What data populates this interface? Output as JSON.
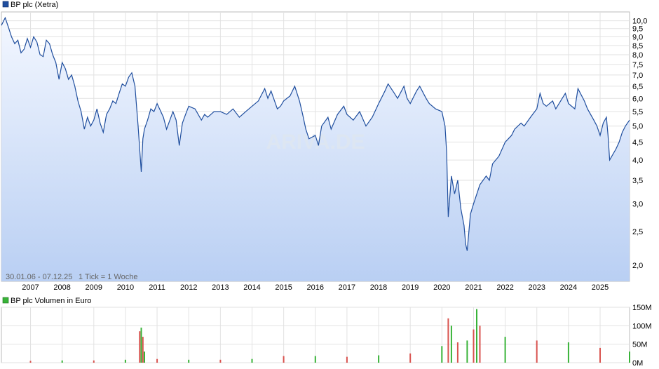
{
  "chart_data": [
    {
      "type": "line",
      "title": "BP plc (Xetra)",
      "legend": "top-left",
      "color": "#1f4e9e",
      "fill_gradient": [
        "#f3f7ff",
        "#b9cff3"
      ],
      "y_scale": "log",
      "ylim": [
        1.8,
        10.6
      ],
      "y_ticks": [
        "10,0",
        "9,5",
        "9,0",
        "8,5",
        "8,0",
        "7,5",
        "7,0",
        "6,5",
        "6,0",
        "5,5",
        "5,0",
        "4,5",
        "4,0",
        "3,5",
        "3,0",
        "2,5",
        "2,0"
      ],
      "x_ticks": [
        "2007",
        "2008",
        "2009",
        "2010",
        "2011",
        "2012",
        "2013",
        "2014",
        "2015",
        "2016",
        "2017",
        "2018",
        "2019",
        "2020",
        "2021",
        "2022",
        "2023",
        "2024",
        "2025"
      ],
      "grid": true,
      "watermark": "ARIVA.DE",
      "date_range_note": "30.01.06 - 07.12.25",
      "tick_note": "1 Tick = 1 Woche",
      "series": [
        {
          "name": "BP plc (Xetra)",
          "x": [
            2006.08,
            2006.2,
            2006.3,
            2006.4,
            2006.5,
            2006.6,
            2006.7,
            2006.8,
            2006.9,
            2007.0,
            2007.1,
            2007.2,
            2007.3,
            2007.4,
            2007.5,
            2007.6,
            2007.7,
            2007.8,
            2007.9,
            2008.0,
            2008.1,
            2008.2,
            2008.3,
            2008.4,
            2008.5,
            2008.6,
            2008.7,
            2008.8,
            2008.9,
            2009.0,
            2009.1,
            2009.2,
            2009.3,
            2009.4,
            2009.5,
            2009.6,
            2009.7,
            2009.8,
            2009.9,
            2010.0,
            2010.1,
            2010.2,
            2010.3,
            2010.4,
            2010.5,
            2010.55,
            2010.6,
            2010.7,
            2010.8,
            2010.9,
            2011.0,
            2011.2,
            2011.3,
            2011.5,
            2011.6,
            2011.7,
            2011.8,
            2011.9,
            2012.0,
            2012.2,
            2012.4,
            2012.5,
            2012.6,
            2012.8,
            2013.0,
            2013.2,
            2013.4,
            2013.6,
            2013.8,
            2014.0,
            2014.2,
            2014.4,
            2014.5,
            2014.6,
            2014.8,
            2014.9,
            2015.0,
            2015.2,
            2015.35,
            2015.5,
            2015.6,
            2015.7,
            2015.8,
            2016.0,
            2016.1,
            2016.2,
            2016.4,
            2016.5,
            2016.7,
            2016.9,
            2017.0,
            2017.2,
            2017.4,
            2017.6,
            2017.8,
            2018.0,
            2018.2,
            2018.3,
            2018.5,
            2018.6,
            2018.8,
            2018.9,
            2019.0,
            2019.2,
            2019.3,
            2019.5,
            2019.6,
            2019.8,
            2020.0,
            2020.1,
            2020.15,
            2020.2,
            2020.3,
            2020.4,
            2020.5,
            2020.6,
            2020.7,
            2020.75,
            2020.8,
            2020.9,
            2021.0,
            2021.2,
            2021.4,
            2021.5,
            2021.6,
            2021.8,
            2022.0,
            2022.2,
            2022.3,
            2022.5,
            2022.6,
            2022.8,
            2023.0,
            2023.1,
            2023.2,
            2023.3,
            2023.5,
            2023.6,
            2023.8,
            2023.9,
            2024.0,
            2024.2,
            2024.3,
            2024.5,
            2024.6,
            2024.8,
            2024.9,
            2025.0,
            2025.1,
            2025.2,
            2025.25,
            2025.3,
            2025.5,
            2025.6,
            2025.7,
            2025.8,
            2025.93
          ],
          "y": [
            9.7,
            10.2,
            9.6,
            9.0,
            8.6,
            8.8,
            8.1,
            8.3,
            8.9,
            8.4,
            9.0,
            8.7,
            8.0,
            7.9,
            8.8,
            8.6,
            8.0,
            7.6,
            6.8,
            7.6,
            7.3,
            6.8,
            7.0,
            6.5,
            5.9,
            5.5,
            4.9,
            5.3,
            5.0,
            5.2,
            5.6,
            5.1,
            4.8,
            5.4,
            5.6,
            5.9,
            5.8,
            6.2,
            6.6,
            6.5,
            6.9,
            7.1,
            6.5,
            5.0,
            3.7,
            4.6,
            4.9,
            5.2,
            5.6,
            5.5,
            5.8,
            5.3,
            4.9,
            5.5,
            5.2,
            4.4,
            5.1,
            5.4,
            5.7,
            5.6,
            5.2,
            5.4,
            5.3,
            5.5,
            5.5,
            5.4,
            5.6,
            5.3,
            5.5,
            5.7,
            5.9,
            6.4,
            6.0,
            6.3,
            5.6,
            5.7,
            5.9,
            6.1,
            6.5,
            5.9,
            5.4,
            4.9,
            4.6,
            4.7,
            4.4,
            5.0,
            5.3,
            4.9,
            5.4,
            5.7,
            5.4,
            5.2,
            5.5,
            5.0,
            5.3,
            5.8,
            6.3,
            6.6,
            6.2,
            6.0,
            6.5,
            6.0,
            5.8,
            6.3,
            6.5,
            6.0,
            5.8,
            5.6,
            5.5,
            5.0,
            4.2,
            2.75,
            3.6,
            3.2,
            3.5,
            2.9,
            2.6,
            2.3,
            2.2,
            2.8,
            3.0,
            3.4,
            3.6,
            3.5,
            3.9,
            4.1,
            4.5,
            4.7,
            4.9,
            5.1,
            5.0,
            5.3,
            5.6,
            6.2,
            5.8,
            5.7,
            5.9,
            5.6,
            6.0,
            6.2,
            5.8,
            5.6,
            6.4,
            5.9,
            5.6,
            5.2,
            5.0,
            4.7,
            5.1,
            5.3,
            4.7,
            4.0,
            4.3,
            4.5,
            4.8,
            5.0,
            5.2
          ]
        }
      ]
    },
    {
      "type": "bar",
      "title": "BP plc Volumen in Euro",
      "legend": "top-left",
      "colors": {
        "up": "#38b338",
        "down": "#d9534f"
      },
      "unit": "M",
      "ylim": [
        0,
        150
      ],
      "y_ticks": [
        "150M",
        "100M",
        "50M",
        "0M"
      ],
      "grid": true,
      "series": [
        {
          "name": "BP plc Volumen in Euro",
          "x": [
            2006,
            2007,
            2008,
            2009,
            2010,
            2010.45,
            2010.5,
            2010.55,
            2010.6,
            2011,
            2012,
            2013,
            2014,
            2015,
            2016,
            2017,
            2018,
            2019,
            2020,
            2020.2,
            2020.3,
            2020.5,
            2020.8,
            2021,
            2021.1,
            2021.2,
            2022,
            2023,
            2024,
            2025,
            2025.93
          ],
          "y": [
            5,
            5,
            6,
            6,
            8,
            85,
            95,
            70,
            30,
            10,
            8,
            8,
            10,
            18,
            18,
            16,
            20,
            25,
            45,
            120,
            100,
            55,
            60,
            90,
            145,
            100,
            70,
            60,
            55,
            40,
            30
          ]
        }
      ]
    }
  ]
}
